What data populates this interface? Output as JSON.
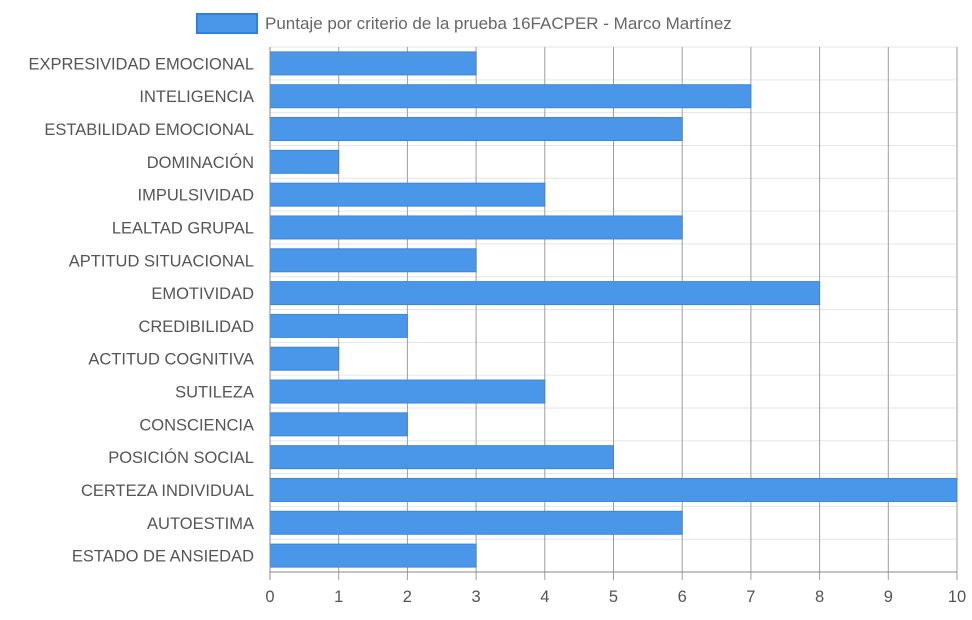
{
  "chart_data": {
    "type": "bar",
    "orientation": "horizontal",
    "categories": [
      "EXPRESIVIDAD EMOCIONAL",
      "INTELIGENCIA",
      "ESTABILIDAD EMOCIONAL",
      "DOMINACIÓN",
      "IMPULSIVIDAD",
      "LEALTAD GRUPAL",
      "APTITUD SITUACIONAL",
      "EMOTIVIDAD",
      "CREDIBILIDAD",
      "ACTITUD COGNITIVA",
      "SUTILEZA",
      "CONSCIENCIA",
      "POSICIÓN SOCIAL",
      "CERTEZA INDIVIDUAL",
      "AUTOESTIMA",
      "ESTADO DE ANSIEDAD"
    ],
    "series": [
      {
        "name": "Puntaje por criterio de la prueba 16FACPER - Marco Martínez",
        "values": [
          3,
          7,
          6,
          1,
          4,
          6,
          3,
          8,
          2,
          1,
          4,
          2,
          5,
          10,
          6,
          3
        ]
      }
    ],
    "xlim": [
      0,
      10
    ],
    "xticks": [
      "0",
      "1",
      "2",
      "3",
      "4",
      "5",
      "6",
      "7",
      "8",
      "9",
      "10"
    ],
    "grid": true,
    "legend_position": "top",
    "colors": {
      "bar_fill": "#4a97ea",
      "bar_stroke": "#3b86dc",
      "legend_fill": "#4a97ea",
      "legend_stroke": "#2f7fe0",
      "grid_vertical": "#9e9e9e",
      "grid_horizontal": "#e6e6e6",
      "axis": "#888888"
    }
  }
}
